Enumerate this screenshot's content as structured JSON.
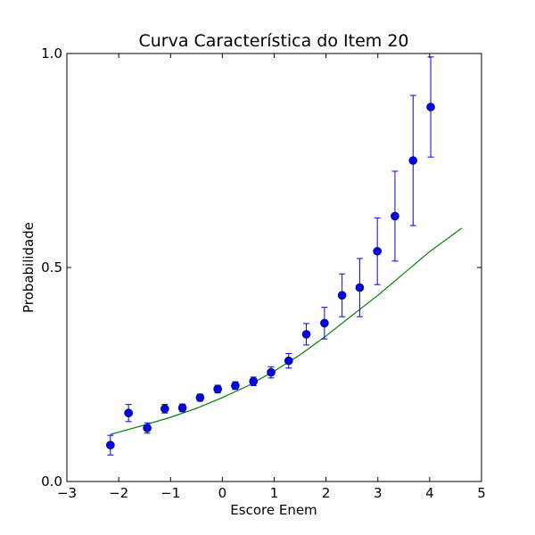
{
  "chart_data": {
    "type": "scatter",
    "title": "Curva Característica do Item 20",
    "xlabel": "Escore Enem",
    "ylabel": "Probabilidade",
    "xlim": [
      -3,
      5
    ],
    "ylim": [
      0.0,
      1.0
    ],
    "x_ticks": [
      -3,
      -2,
      -1,
      0,
      1,
      2,
      3,
      4,
      5
    ],
    "x_tick_labels": [
      "−3",
      "−2",
      "−1",
      "0",
      "1",
      "2",
      "3",
      "4",
      "5"
    ],
    "y_ticks": [
      0.0,
      0.5,
      1.0
    ],
    "y_tick_labels": [
      "0.0",
      "0.5",
      "1.0"
    ],
    "grid": false,
    "colors": {
      "points": "#0000ff",
      "errorbars": "#0000ff",
      "curve": "#008000"
    },
    "points": [
      {
        "x": -2.16,
        "y": 0.085,
        "err": 0.023
      },
      {
        "x": -1.81,
        "y": 0.16,
        "err": 0.02
      },
      {
        "x": -1.45,
        "y": 0.125,
        "err": 0.012
      },
      {
        "x": -1.11,
        "y": 0.17,
        "err": 0.01
      },
      {
        "x": -0.77,
        "y": 0.172,
        "err": 0.009
      },
      {
        "x": -0.43,
        "y": 0.196,
        "err": 0.008
      },
      {
        "x": -0.09,
        "y": 0.216,
        "err": 0.009
      },
      {
        "x": 0.25,
        "y": 0.224,
        "err": 0.009
      },
      {
        "x": 0.6,
        "y": 0.234,
        "err": 0.01
      },
      {
        "x": 0.94,
        "y": 0.255,
        "err": 0.013
      },
      {
        "x": 1.28,
        "y": 0.282,
        "err": 0.017
      },
      {
        "x": 1.62,
        "y": 0.344,
        "err": 0.025
      },
      {
        "x": 1.97,
        "y": 0.37,
        "err": 0.037
      },
      {
        "x": 2.31,
        "y": 0.435,
        "err": 0.05
      },
      {
        "x": 2.65,
        "y": 0.453,
        "err": 0.068
      },
      {
        "x": 2.99,
        "y": 0.538,
        "err": 0.078
      },
      {
        "x": 3.33,
        "y": 0.62,
        "err": 0.105
      },
      {
        "x": 3.68,
        "y": 0.75,
        "err": 0.152
      },
      {
        "x": 4.02,
        "y": 0.875,
        "err": 0.117
      }
    ],
    "curve": {
      "x": [
        -2.16,
        -1.5,
        -1.0,
        -0.5,
        0.0,
        0.5,
        1.0,
        1.5,
        2.0,
        2.5,
        3.0,
        3.5,
        4.0,
        4.62
      ],
      "y": [
        0.11,
        0.132,
        0.15,
        0.171,
        0.196,
        0.224,
        0.258,
        0.296,
        0.34,
        0.388,
        0.435,
        0.486,
        0.537,
        0.592
      ]
    }
  }
}
